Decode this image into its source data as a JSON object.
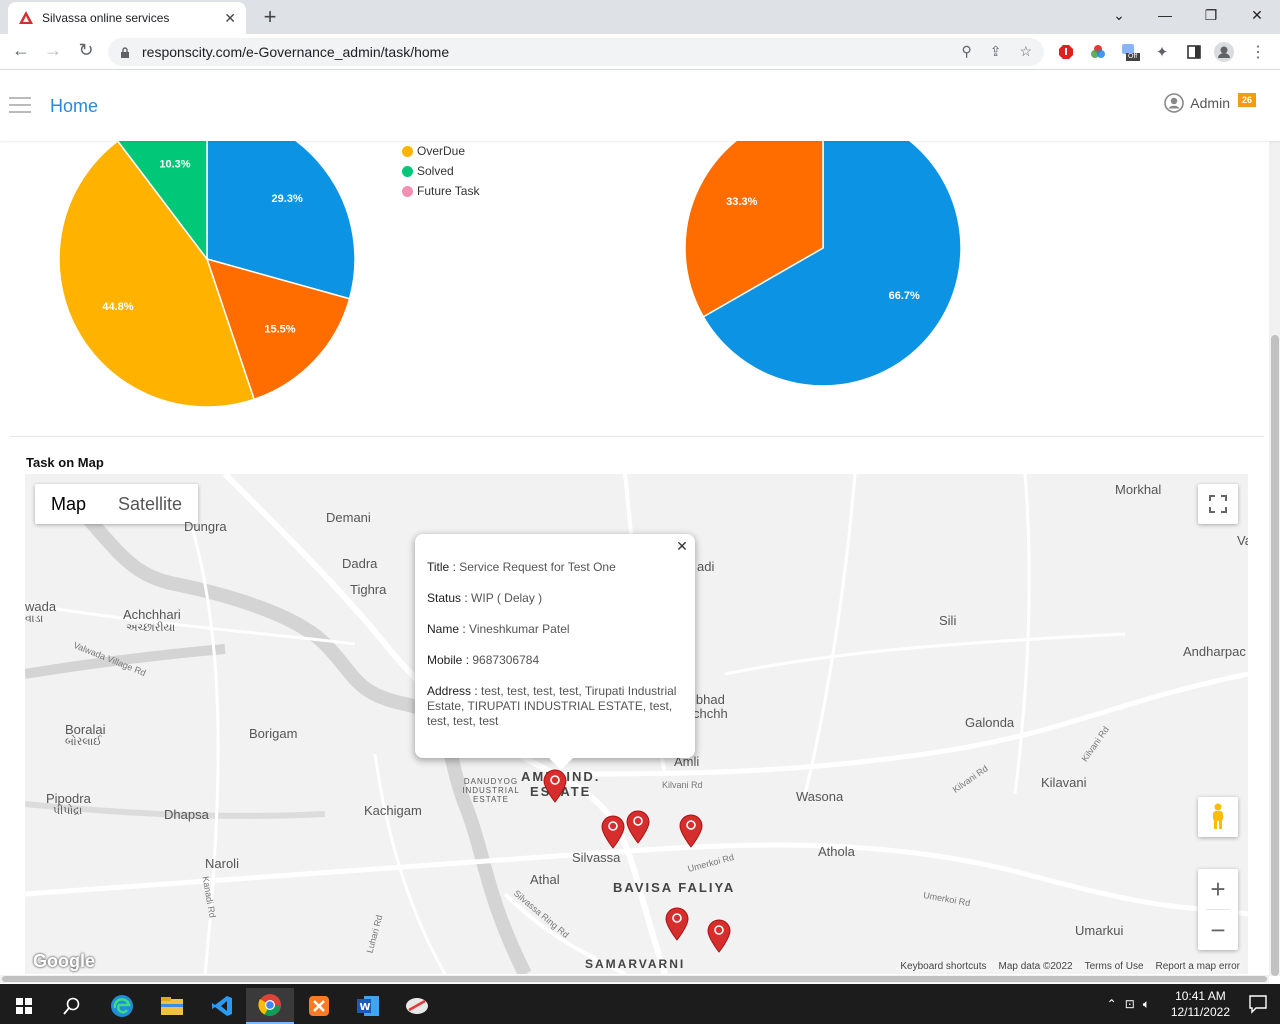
{
  "browser": {
    "tab_title": "Silvassa online services",
    "url": "responscity.com/e-Governance_admin/task/home",
    "ext_off_label": "Off"
  },
  "header": {
    "home_label": "Home",
    "admin_label": "Admin",
    "badge_count": "26"
  },
  "legend": [
    {
      "label": "OverDue",
      "color": "#ffb300"
    },
    {
      "label": "Solved",
      "color": "#00c878"
    },
    {
      "label": "Future Task",
      "color": "#f48fb1"
    }
  ],
  "chart_data": [
    {
      "type": "pie",
      "slices": [
        {
          "label": "29.3%",
          "value": 29.3,
          "color": "#0d93e3"
        },
        {
          "label": "15.5%",
          "value": 15.5,
          "color": "#ff6d00"
        },
        {
          "label": "44.8%",
          "value": 44.8,
          "color": "#ffb300"
        },
        {
          "label": "10.3%",
          "value": 10.3,
          "color": "#00c878"
        }
      ]
    },
    {
      "type": "pie",
      "slices": [
        {
          "label": "66.7%",
          "value": 66.7,
          "color": "#0d93e3"
        },
        {
          "label": "33.3%",
          "value": 33.3,
          "color": "#ff6d00"
        }
      ]
    }
  ],
  "map": {
    "section_title": "Task on Map",
    "map_label": "Map",
    "satellite_label": "Satellite",
    "places": {
      "morkhal": "Morkhal",
      "demani": "Demani",
      "dungra": "Dungra",
      "dadra": "Dadra",
      "tighra": "Tighra",
      "wada": "wada",
      "wada_gu": "વાડા",
      "achchhari": "Achchhari",
      "achchhari_gu": "અચ્છારીયા",
      "sili": "Sili",
      "andharpac": "Andharpac",
      "va": "Va",
      "adi": "adi",
      "ibhad": "ibhad",
      "chchh": "chchh",
      "galonda": "Galonda",
      "boralai": "Boralai",
      "boralai_gu": "બોરલાઈ",
      "borigam": "Borigam",
      "amli": "Amli",
      "kilavani": "Kilavani",
      "pipodra": "Pipodra",
      "pipodra_gu": "પીપોદ્રા",
      "dhapsa": "Dhapsa",
      "kachigam": "Kachigam",
      "wasona": "Wasona",
      "silvassa": "Silvassa",
      "athola": "Athola",
      "naroli": "Naroli",
      "athal": "Athal",
      "bavisa": "BAVISA FALIYA",
      "samarvarni": "SAMARVARNI",
      "umarkui": "Umarkui",
      "amli_ind": "AMLI IND.",
      "estate": "ESTATE",
      "danudyog": "DANUDYOG INDUSTRIAL ESTATE"
    },
    "roads": {
      "valwada": "Valwada Village Rd",
      "kilvani_rd": "Kilvani Rd",
      "kilvani_rd2": "Kilvani Rd",
      "umerkoi": "Umerkoi Rd",
      "umerkoi2": "Umerkoi Rd",
      "ring": "Silvassa Ring Rd",
      "kanadi": "Kanadi Rd",
      "luhari": "Luhari Rd"
    },
    "info": {
      "title_label": "Title",
      "title_value": "Service Request for Test One",
      "status_label": "Status",
      "status_value": "WIP ( Delay )",
      "name_label": "Name",
      "name_value": "Vineshkumar Patel",
      "mobile_label": "Mobile",
      "mobile_value": "9687306784",
      "address_label": "Address",
      "address_value": "test, test, test, test, Tirupati Industrial Estate, TIRUPATI INDUSTRIAL ESTATE, test, test, test, test"
    },
    "attribution": {
      "shortcuts": "Keyboard shortcuts",
      "data": "Map data ©2022",
      "terms": "Terms of Use",
      "report": "Report a map error"
    },
    "google_logo": "Google"
  },
  "taskbar": {
    "time": "10:41 AM",
    "date": "12/11/2022"
  }
}
